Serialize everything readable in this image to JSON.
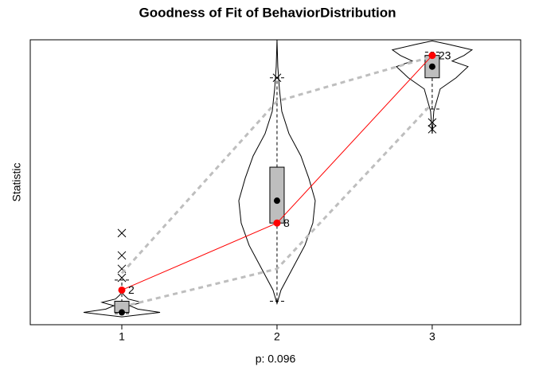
{
  "chart_data": {
    "type": "violin",
    "title": "Goodness of Fit of BehaviorDistribution",
    "xlabel": "p: 0.096",
    "ylabel": "Statistic",
    "x": [
      1,
      2,
      3
    ],
    "xlim": [
      0.41,
      3.57
    ],
    "xticks": [
      1,
      2,
      3
    ],
    "ylim": [
      -1.1,
      24.4
    ],
    "groups": [
      {
        "median": 0,
        "q1": 0,
        "q3": 1,
        "whisker_low": -0.1,
        "whisker_high": 2.9,
        "outliers": [
          7.1,
          5.1,
          3.9,
          3.1
        ],
        "density": {
          "y": [
            -0.4,
            0,
            0.3,
            0.6,
            0.9,
            1.2,
            1.6,
            2.2
          ],
          "width": [
            0,
            48,
            20,
            10,
            25,
            8,
            2,
            0
          ]
        }
      },
      {
        "median": 10,
        "q1": 8,
        "q3": 13,
        "whisker_low": 1,
        "whisker_high": 21,
        "outliers": [
          21
        ],
        "density": {
          "y": [
            0.8,
            2,
            4,
            6,
            8,
            10,
            12,
            14,
            16,
            18,
            20,
            22,
            24.4
          ],
          "width": [
            0,
            5,
            20,
            35,
            45,
            48,
            40,
            30,
            15,
            6,
            3,
            1,
            0
          ]
        }
      },
      {
        "median": 22,
        "q1": 21,
        "q3": 23,
        "whisker_low": 18.2,
        "whisker_high": 23.3,
        "outliers": [
          17,
          16.4
        ],
        "density": {
          "y": [
            16,
            18,
            20,
            21,
            22,
            22.5,
            23,
            23.5,
            24,
            24.3
          ],
          "width": [
            0,
            2,
            10,
            30,
            45,
            25,
            40,
            50,
            20,
            0
          ]
        }
      }
    ],
    "observed": {
      "color": "#ff0000",
      "values": [
        2,
        8,
        23
      ]
    },
    "band": {
      "color": "#bebebe",
      "lower": [
        0.5,
        3.9,
        18.7
      ],
      "upper": [
        3.5,
        18.9,
        22.9
      ]
    }
  }
}
